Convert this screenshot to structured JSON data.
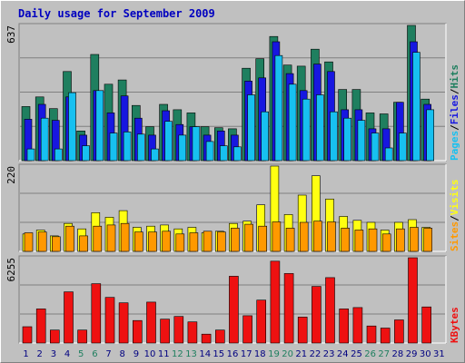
{
  "colors": {
    "hits": "#1f7f5f",
    "files": "#1717e0",
    "pages": "#17c0f0",
    "visits": "#ffff11",
    "sites": "#ff9900",
    "kbytes": "#ee1111",
    "weekend_day": "#1f7f5f",
    "weekday": "#000080",
    "title": "#0000c0"
  },
  "chart_data": {
    "type": "bar",
    "title": "Daily usage for September 2009",
    "categories": [
      "1",
      "2",
      "3",
      "4",
      "5",
      "6",
      "7",
      "8",
      "9",
      "10",
      "11",
      "12",
      "13",
      "14",
      "15",
      "16",
      "17",
      "18",
      "19",
      "20",
      "21",
      "22",
      "23",
      "24",
      "25",
      "26",
      "27",
      "28",
      "29",
      "30",
      "31"
    ],
    "weekend_days": [
      "5",
      "6",
      "12",
      "13",
      "19",
      "20",
      "26",
      "27"
    ],
    "panels": [
      {
        "id": "hits",
        "ymax_label": "637",
        "ymax": 637,
        "legend": [
          "Pages",
          "Files",
          "Hits"
        ],
        "series": [
          {
            "name": "Hits",
            "values": [
              255,
              300,
              245,
              420,
              140,
              500,
              360,
              380,
              260,
              160,
              265,
              240,
              225,
              160,
              155,
              150,
              435,
              480,
              585,
              450,
              445,
              525,
              465,
              335,
              335,
              225,
              220,
              275,
              645,
              290,
              0
            ]
          },
          {
            "name": "Files",
            "values": [
              195,
              265,
              190,
              300,
              120,
              330,
              225,
              305,
              200,
              120,
              235,
              170,
              160,
              120,
              140,
              120,
              375,
              390,
              560,
              410,
              330,
              455,
              420,
              240,
              240,
              150,
              150,
              275,
              560,
              265,
              0
            ]
          },
          {
            "name": "Pages",
            "values": [
              55,
              200,
              55,
              320,
              70,
              330,
              130,
              135,
              125,
              55,
              185,
              120,
              160,
              90,
              70,
              65,
              310,
              230,
              495,
              360,
              290,
              310,
              230,
              200,
              190,
              130,
              60,
              130,
              510,
              240,
              0
            ]
          }
        ]
      },
      {
        "id": "visits",
        "ymax_label": "220",
        "ymax": 220,
        "legend": [
          "Sites",
          "Visits"
        ],
        "series": [
          {
            "name": "Visits",
            "values": [
              45,
              55,
              40,
              72,
              58,
              100,
              88,
              105,
              62,
              65,
              68,
              58,
              62,
              48,
              52,
              72,
              78,
              120,
              230,
              95,
              145,
              195,
              135,
              90,
              80,
              75,
              55,
              75,
              82,
              62,
              0
            ]
          },
          {
            "name": "Sites",
            "values": [
              48,
              50,
              38,
              65,
              40,
              65,
              68,
              72,
              50,
              50,
              52,
              45,
              48,
              52,
              50,
              60,
              70,
              65,
              76,
              60,
              75,
              78,
              76,
              60,
              55,
              58,
              45,
              58,
              62,
              60,
              0
            ]
          }
        ]
      },
      {
        "id": "kbytes",
        "ymax_label": "6255",
        "ymax": 6255,
        "legend": [
          "KBytes"
        ],
        "series": [
          {
            "name": "KBytes",
            "values": [
              1200,
              2500,
              950,
              3750,
              950,
              4350,
              3350,
              2950,
              1650,
              3000,
              1750,
              1950,
              1550,
              650,
              950,
              4900,
              2000,
              3150,
              6000,
              5100,
              1900,
              4150,
              4800,
              2500,
              2600,
              1250,
              1100,
              1700,
              6500,
              2650,
              0
            ]
          }
        ]
      }
    ]
  }
}
